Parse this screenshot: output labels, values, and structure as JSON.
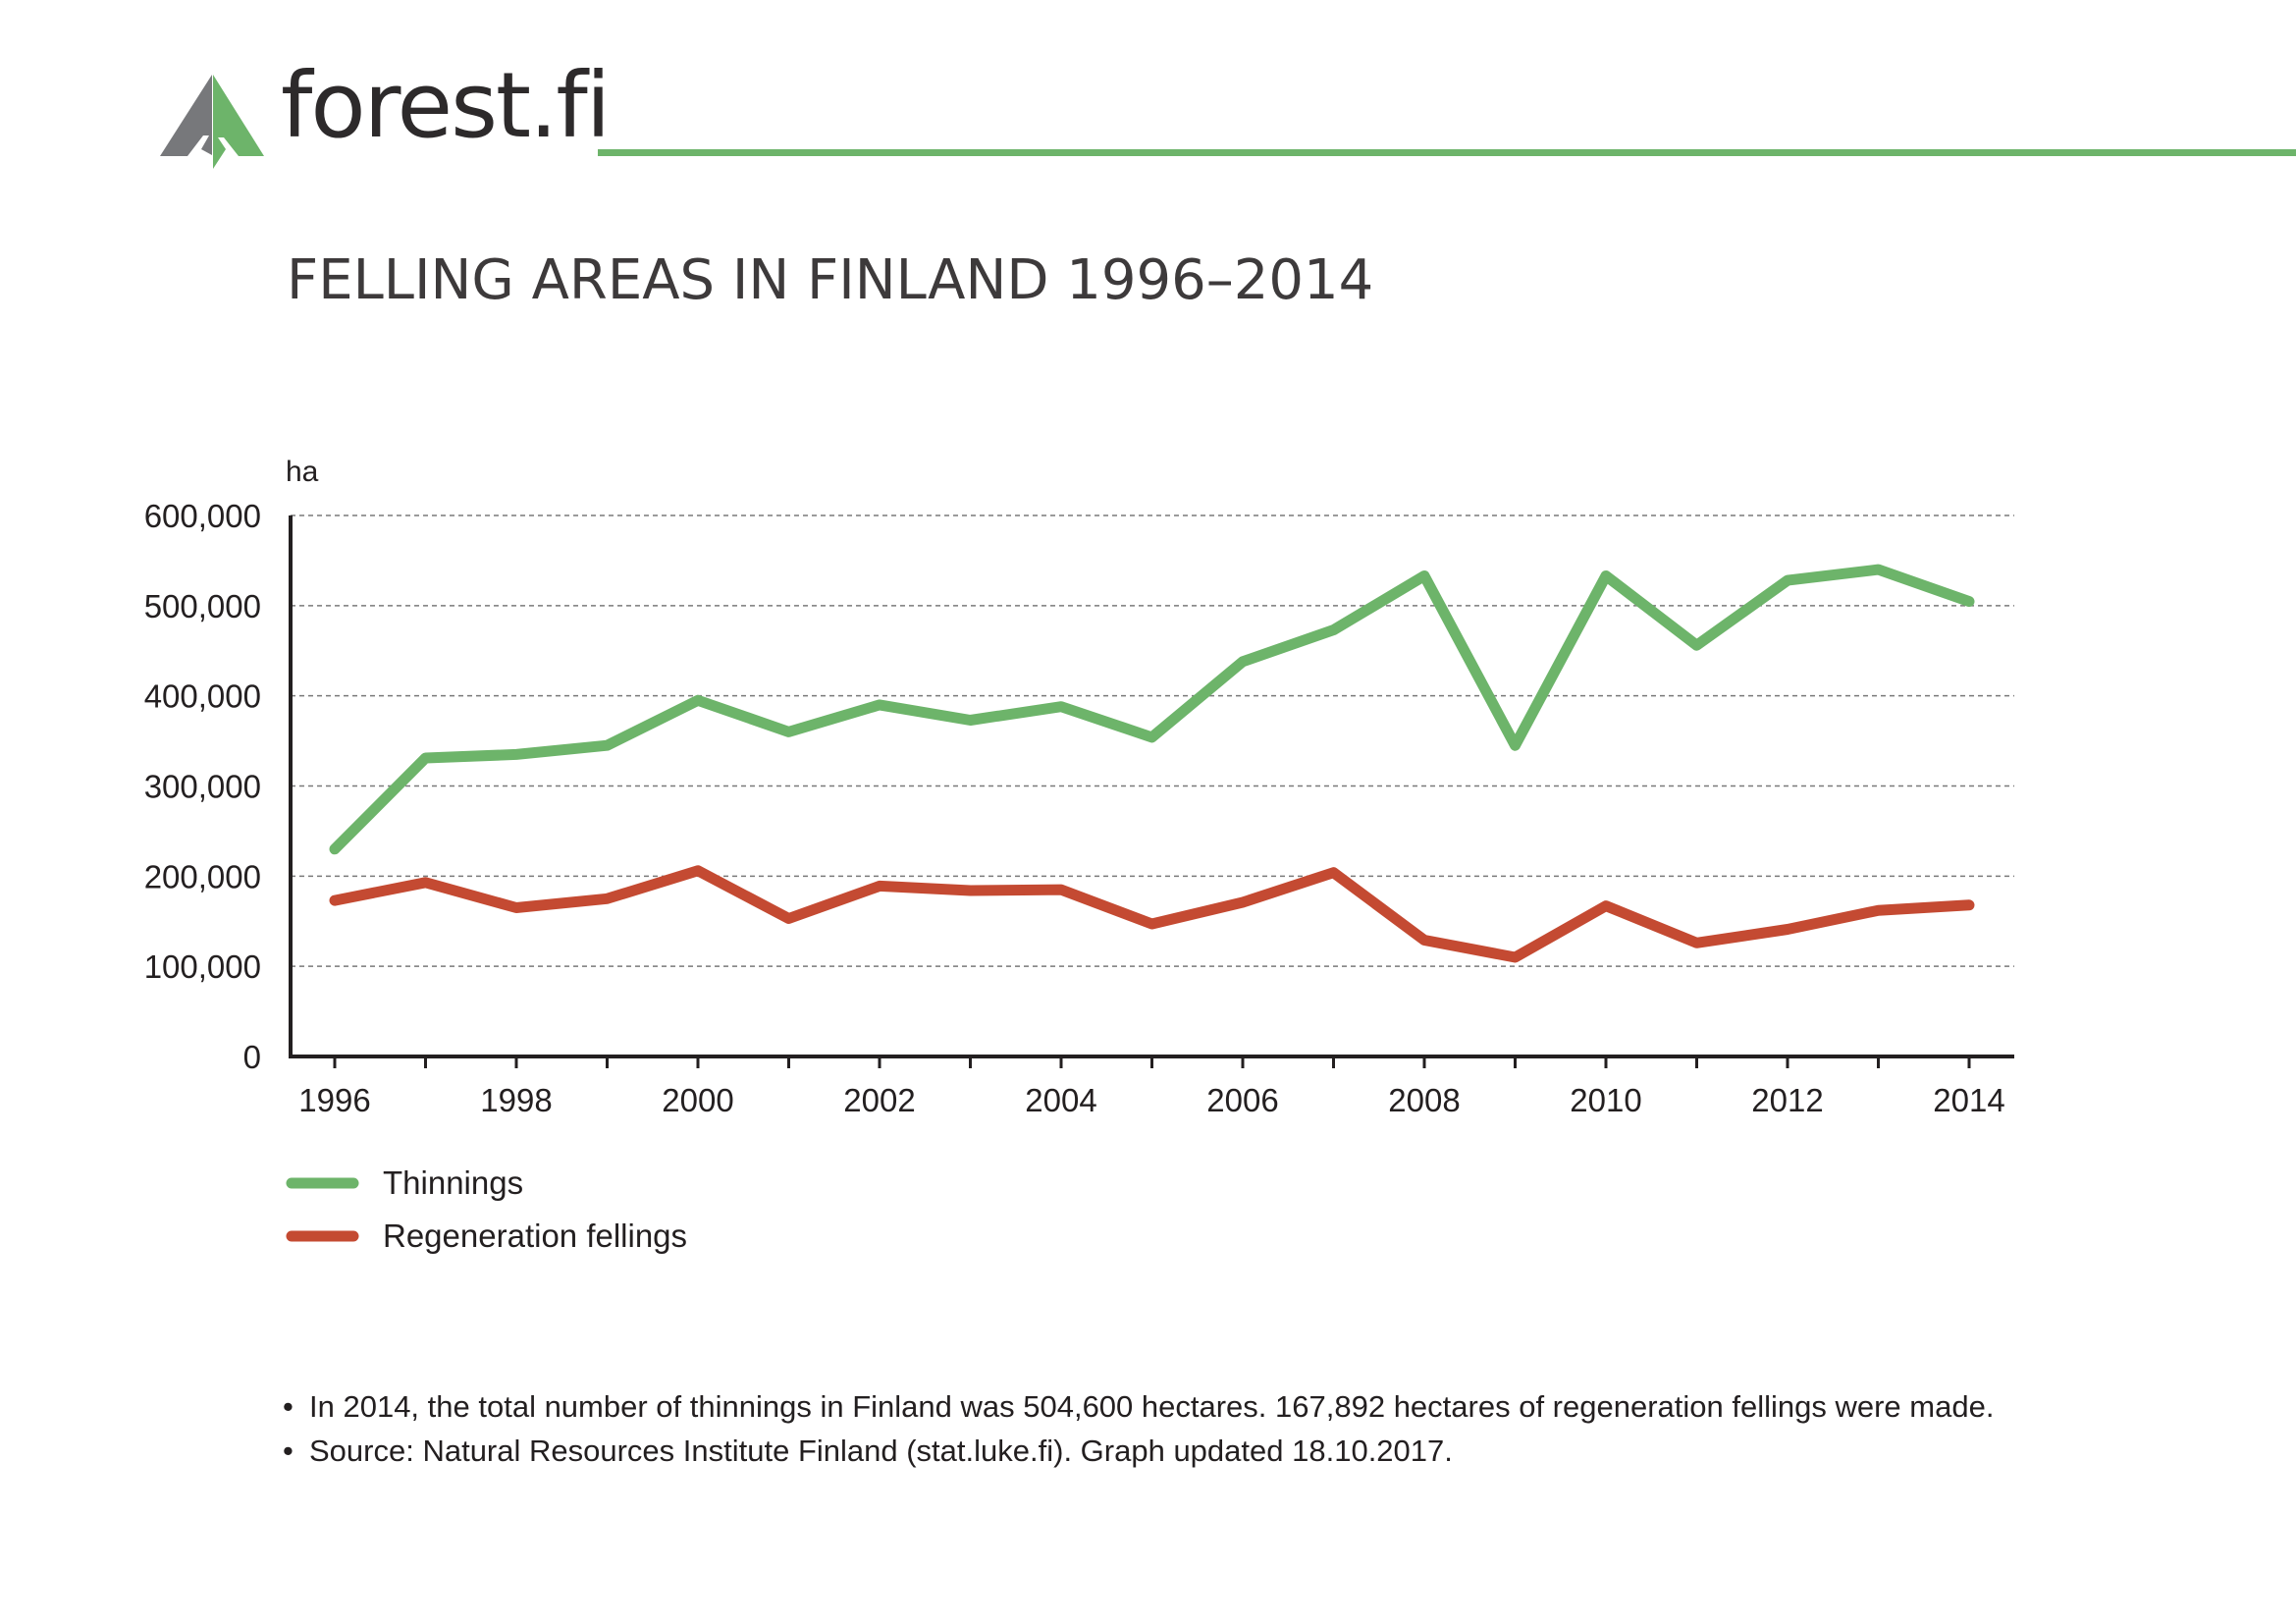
{
  "header": {
    "brand_name": "forest.fi",
    "logo_icon": "forest-fi-tree-logo-icon",
    "colors": {
      "brand_green": "#6db46a",
      "brand_gray": "#77787b"
    }
  },
  "chart_data": {
    "type": "line",
    "title": "FELLING AREAS IN FINLAND 1996–2014",
    "ylabel": "ha",
    "xlabel": "",
    "ylim": [
      0,
      600000
    ],
    "y_ticks": [
      0,
      100000,
      200000,
      300000,
      400000,
      500000,
      600000
    ],
    "y_tick_labels": [
      "0",
      "100,000",
      "200,000",
      "300,000",
      "400,000",
      "500,000",
      "600,000"
    ],
    "x": [
      1996,
      1997,
      1998,
      1999,
      2000,
      2001,
      2002,
      2003,
      2004,
      2005,
      2006,
      2007,
      2008,
      2009,
      2010,
      2011,
      2012,
      2013,
      2014
    ],
    "x_tick_labels": [
      "1996",
      "1998",
      "2000",
      "2002",
      "2004",
      "2006",
      "2008",
      "2010",
      "2012",
      "2014"
    ],
    "grid": true,
    "legend_position": "bottom-left",
    "series": [
      {
        "name": "Thinnings",
        "color": "#6db46a",
        "values": [
          230000,
          331000,
          335000,
          345000,
          395000,
          360000,
          390000,
          373000,
          388000,
          354000,
          438000,
          473000,
          533000,
          345000,
          533000,
          456000,
          528000,
          540000,
          504600
        ]
      },
      {
        "name": "Regeneration fellings",
        "color": "#c44a32",
        "values": [
          173000,
          193000,
          165000,
          175000,
          206000,
          153000,
          189000,
          184000,
          185000,
          147000,
          171000,
          204000,
          129000,
          110000,
          167000,
          126000,
          141000,
          162000,
          167892
        ]
      }
    ]
  },
  "notes": [
    "In 2014, the total number of thinnings in Finland was 504,600 hectares. 167,892 hectares of regeneration fellings were made.",
    "Source: Natural Resources Institute Finland (stat.luke.fi). Graph updated 18.10.2017."
  ]
}
